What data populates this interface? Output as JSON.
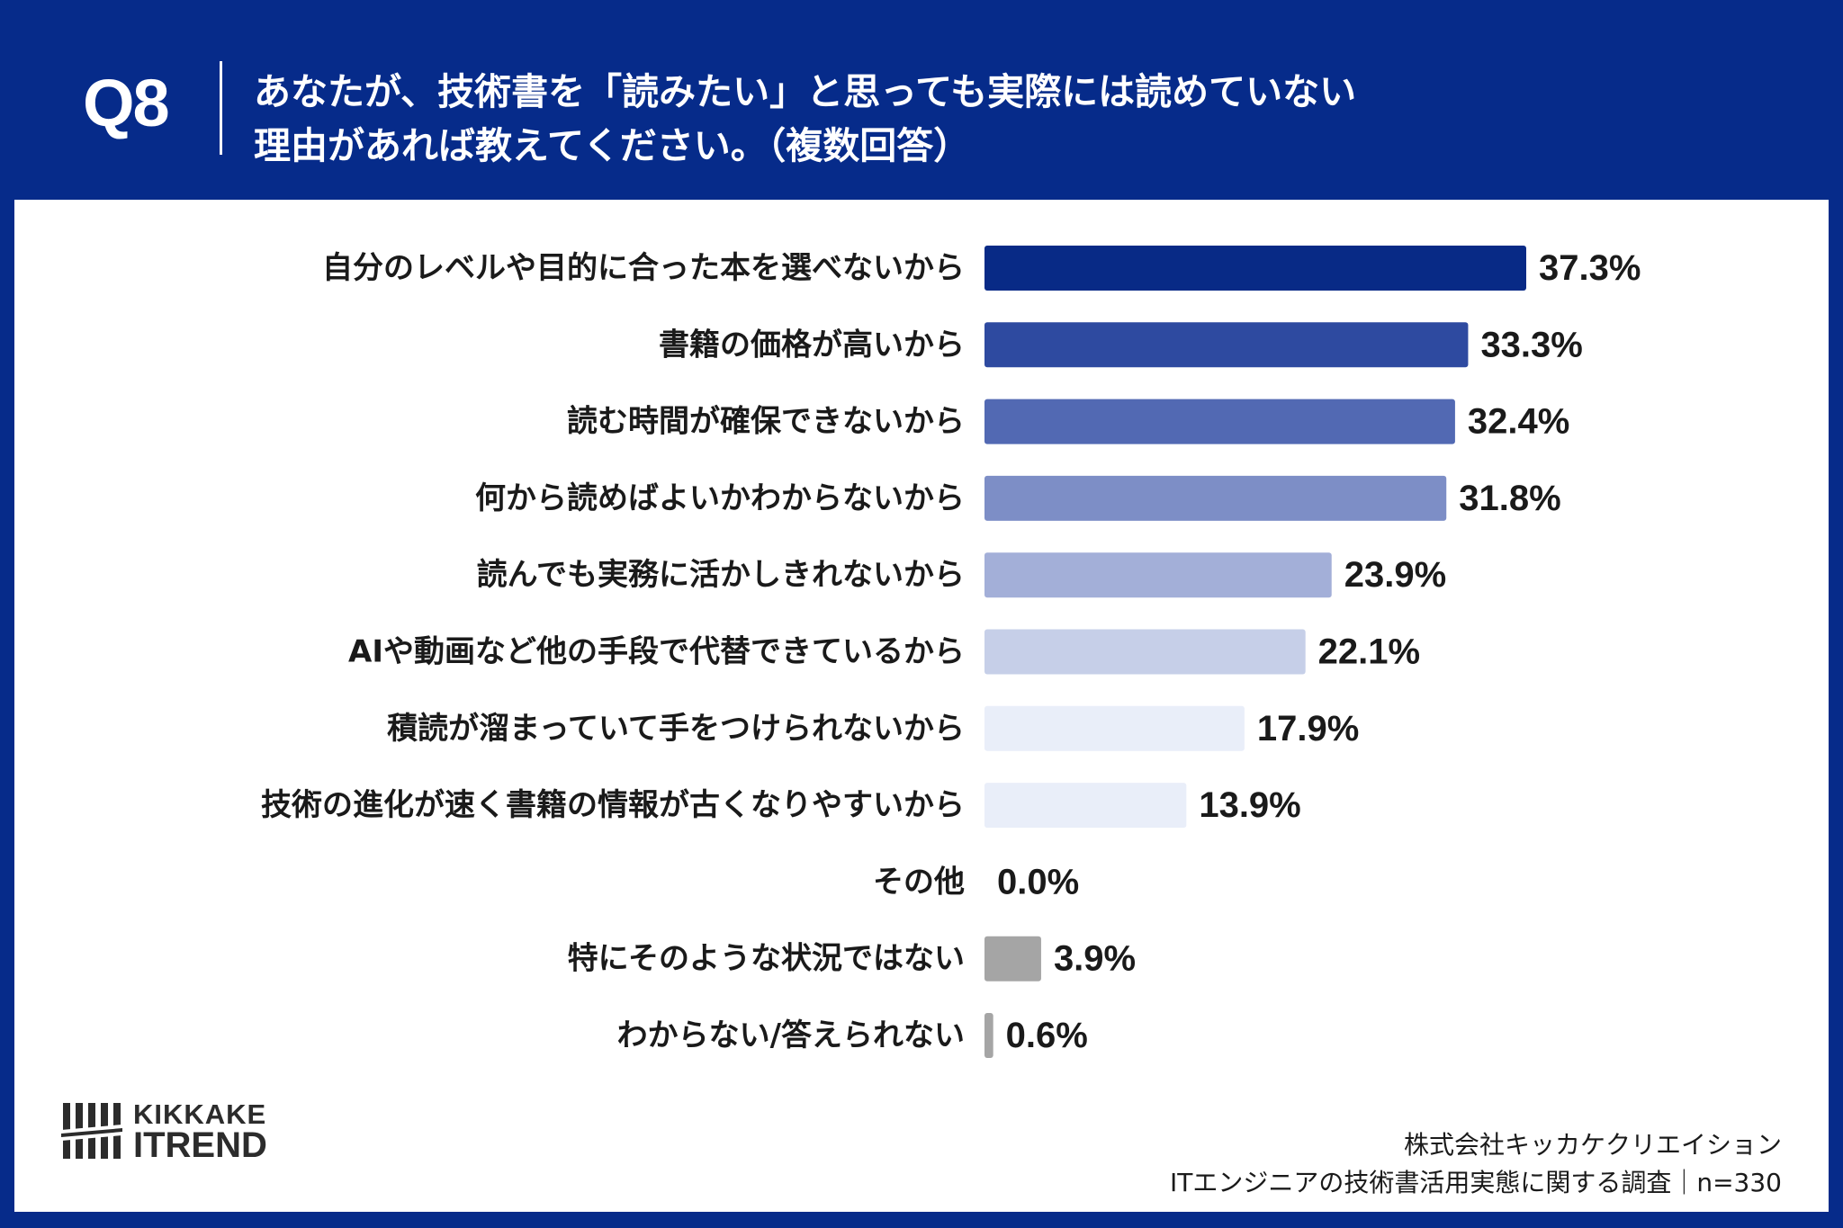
{
  "header": {
    "question_number": "Q8",
    "question_line1": "あなたが、技術書を「読みたい」と思っても実際には読めていない",
    "question_line2": "理由があれば教えてください。（複数回答）"
  },
  "chart_data": {
    "type": "bar",
    "orientation": "horizontal",
    "categories": [
      "自分のレベルや目的に合った本を選べないから",
      "書籍の価格が高いから",
      "読む時間が確保できないから",
      "何から読めばよいかわからないから",
      "読んでも実務に活かしきれないから",
      "AIや動画など他の手段で代替できているから",
      "積読が溜まっていて手をつけられないから",
      "技術の進化が速く書籍の情報が古くなりやすいから",
      "その他",
      "特にそのような状況ではない",
      "わからない/答えられない"
    ],
    "values": [
      37.3,
      33.3,
      32.4,
      31.8,
      23.9,
      22.1,
      17.9,
      13.9,
      0.0,
      3.9,
      0.6
    ],
    "value_labels": [
      "37.3%",
      "33.3%",
      "32.4%",
      "31.8%",
      "23.9%",
      "22.1%",
      "17.9%",
      "13.9%",
      "0.0%",
      "3.9%",
      "0.6%"
    ],
    "colors": [
      "#082a86",
      "#2e4aa0",
      "#5269b3",
      "#7d8ec6",
      "#a3afd8",
      "#c6cfe8",
      "#e9eef9",
      "#e9eef9",
      "#e9eef9",
      "#a5a5a5",
      "#a5a5a5"
    ],
    "xlim": [
      0,
      37.3
    ],
    "grid": false,
    "legend": "none"
  },
  "branding": {
    "logo_line1": "KIKKAKE",
    "logo_line2": "ITREND"
  },
  "footer": {
    "company": "株式会社キッカケクリエイション",
    "survey": "ITエンジニアの技術書活用実態に関する調査｜n=330"
  }
}
